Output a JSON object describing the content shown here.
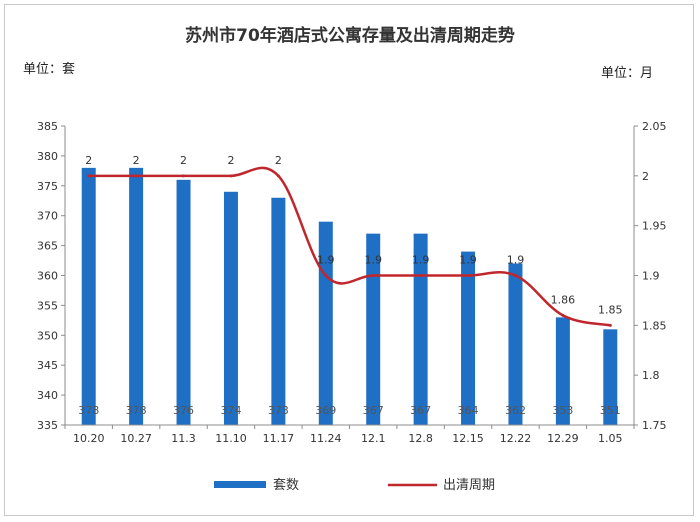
{
  "chart_data": {
    "type": "bar",
    "title": "苏州市70年酒店式公寓存量及出清周期走势",
    "y_left_unit": "单位：套",
    "y_right_unit": "单位：月",
    "categories": [
      "10.20",
      "10.27",
      "11.3",
      "11.10",
      "11.17",
      "11.24",
      "12.1",
      "12.8",
      "12.15",
      "12.22",
      "12.29",
      "1.05"
    ],
    "y_left": {
      "min": 335,
      "max": 385,
      "step": 5,
      "ticks": [
        "335",
        "340",
        "345",
        "350",
        "355",
        "360",
        "365",
        "370",
        "375",
        "380",
        "385"
      ]
    },
    "y_right": {
      "min": 1.75,
      "max": 2.05,
      "step": 0.05,
      "ticks": [
        "1.75",
        "1.8",
        "1.85",
        "1.9",
        "1.95",
        "2",
        "2.05"
      ]
    },
    "series": [
      {
        "name": "套数",
        "type": "bar",
        "axis": "left",
        "color": "#1f6fc5",
        "values": [
          378,
          378,
          376,
          374,
          373,
          369,
          367,
          367,
          364,
          362,
          353,
          351
        ],
        "labels": [
          "378",
          "378",
          "376",
          "374",
          "373",
          "369",
          "367",
          "367",
          "364",
          "362",
          "353",
          "351"
        ]
      },
      {
        "name": "出清周期",
        "type": "line",
        "axis": "right",
        "color": "#c0272d",
        "values": [
          2,
          2,
          2,
          2,
          2,
          1.9,
          1.9,
          1.9,
          1.9,
          1.9,
          1.86,
          1.85
        ],
        "labels": [
          "2",
          "2",
          "2",
          "2",
          "2",
          "1.9",
          "1.9",
          "1.9",
          "1.9",
          "1.9",
          "1.86",
          "1.85"
        ]
      }
    ],
    "grid": false,
    "legend_position": "bottom"
  }
}
